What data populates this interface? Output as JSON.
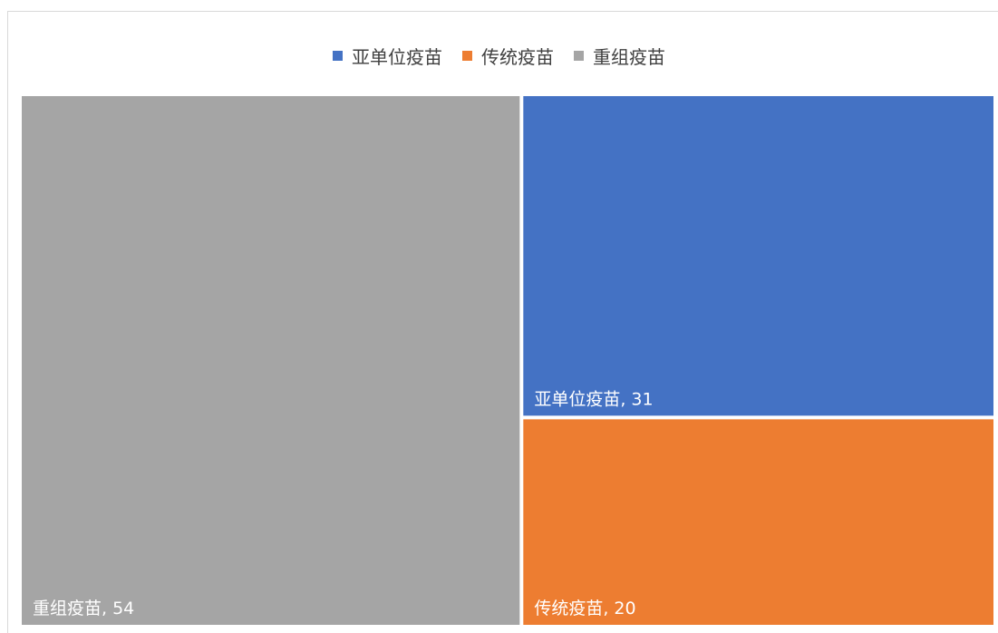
{
  "chart_data": {
    "type": "treemap",
    "title": "",
    "items": [
      {
        "name": "重组疫苗",
        "value": 54,
        "label": "重组疫苗, 54",
        "color": "#a5a5a5"
      },
      {
        "name": "亚单位疫苗",
        "value": 31,
        "label": "亚单位疫苗, 31",
        "color": "#4472c4"
      },
      {
        "name": "传统疫苗",
        "value": 20,
        "label": "传统疫苗, 20",
        "color": "#ed7d31"
      }
    ],
    "legend": {
      "position": "top",
      "entries": [
        {
          "name": "亚单位疫苗",
          "color": "#4472c4"
        },
        {
          "name": "传统疫苗",
          "color": "#ed7d31"
        },
        {
          "name": "重组疫苗",
          "color": "#a5a5a5"
        }
      ]
    }
  }
}
